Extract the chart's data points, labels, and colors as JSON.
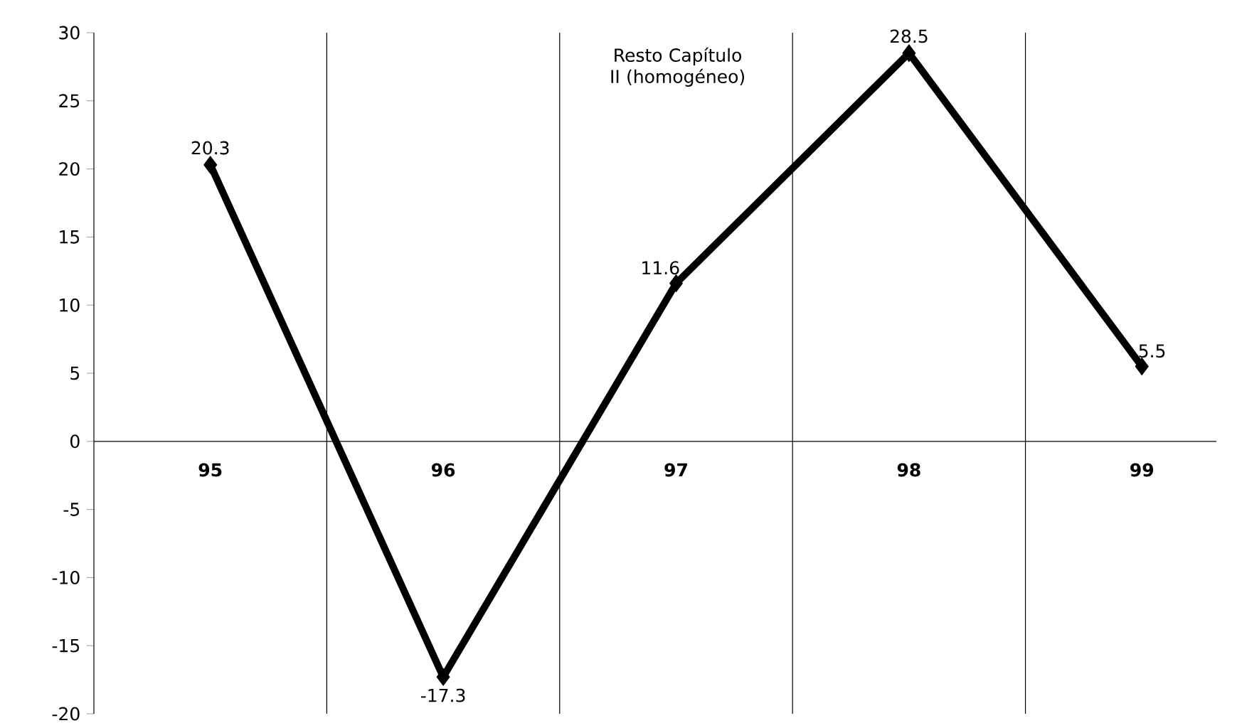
{
  "chart_data": {
    "type": "line",
    "title": "Resto Capítulo II (homogéneo)",
    "categories": [
      "95",
      "96",
      "97",
      "98",
      "99"
    ],
    "series": [
      {
        "color": "#000000",
        "values": [
          20.3,
          -17.3,
          11.6,
          28.5,
          5.5
        ]
      }
    ],
    "ylim": [
      -20,
      30
    ],
    "yticks": [
      -20,
      -15,
      -10,
      -5,
      0,
      5,
      10,
      15,
      20,
      25,
      30
    ],
    "grid": "x",
    "marker": "diamond",
    "line_style": "solid",
    "data_labels": true
  }
}
